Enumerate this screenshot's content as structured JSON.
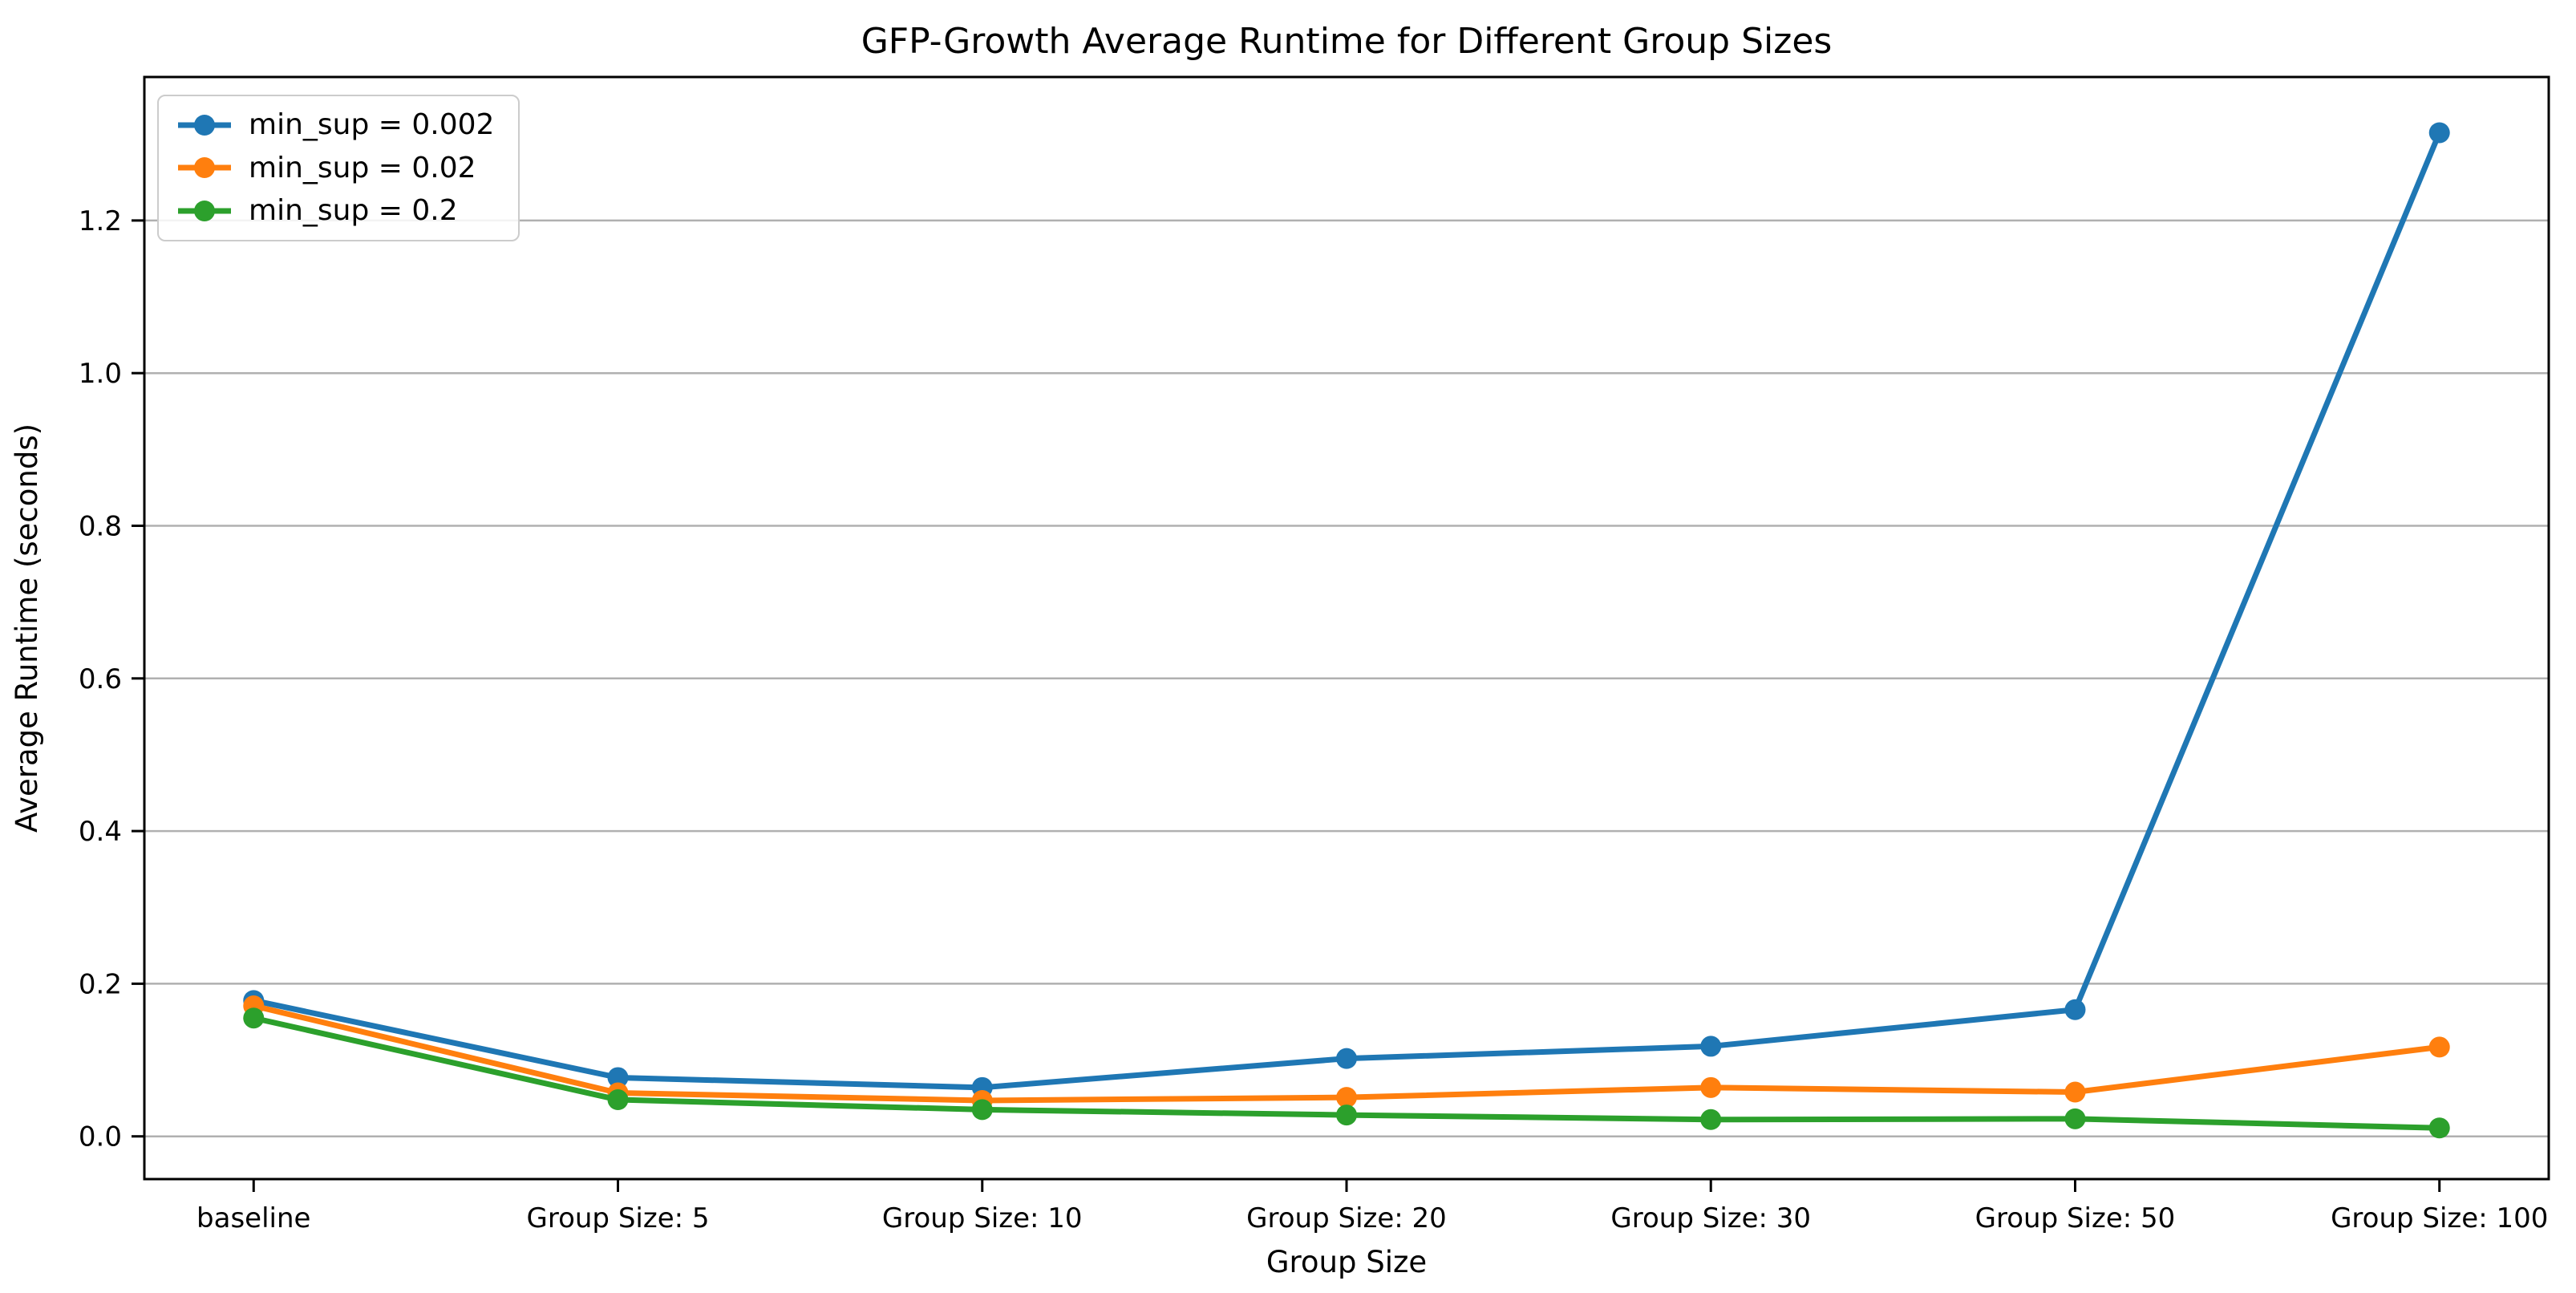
{
  "figure": {
    "title": "GFP-Growth Average Runtime for Different Group Sizes",
    "xlabel": "Group Size",
    "ylabel": "Average Runtime (seconds)"
  },
  "chart_data": {
    "type": "line",
    "title": "GFP-Growth Average Runtime for Different Group Sizes",
    "xlabel": "Group Size",
    "ylabel": "Average Runtime (seconds)",
    "categories": [
      "baseline",
      "Group Size: 5",
      "Group Size: 10",
      "Group Size: 20",
      "Group Size: 30",
      "Group Size: 50",
      "Group Size: 100"
    ],
    "series": [
      {
        "name": "min_sup = 0.002",
        "color": "#1f77b4",
        "values": [
          0.178,
          0.077,
          0.064,
          0.102,
          0.118,
          0.166,
          1.315
        ]
      },
      {
        "name": "min_sup = 0.02",
        "color": "#ff7f0e",
        "values": [
          0.171,
          0.057,
          0.047,
          0.051,
          0.064,
          0.058,
          0.117
        ]
      },
      {
        "name": "min_sup = 0.2",
        "color": "#2ca02c",
        "values": [
          0.155,
          0.048,
          0.035,
          0.028,
          0.022,
          0.023,
          0.011
        ]
      }
    ],
    "ytick_labels": [
      "0.0",
      "0.2",
      "0.4",
      "0.6",
      "0.8",
      "1.0",
      "1.2"
    ],
    "yticks": [
      0.0,
      0.2,
      0.4,
      0.6,
      0.8,
      1.0,
      1.2
    ],
    "ylim": [
      -0.056,
      1.388
    ],
    "xlim": [
      -0.3,
      6.3
    ],
    "grid": "horizontal",
    "legend_position": "upper-left",
    "marker": "circle",
    "colors": {
      "gridline": "#b0b0b0",
      "spine": "#000000",
      "background": "#ffffff",
      "text": "#000000",
      "legend_border": "#cccccc"
    }
  }
}
